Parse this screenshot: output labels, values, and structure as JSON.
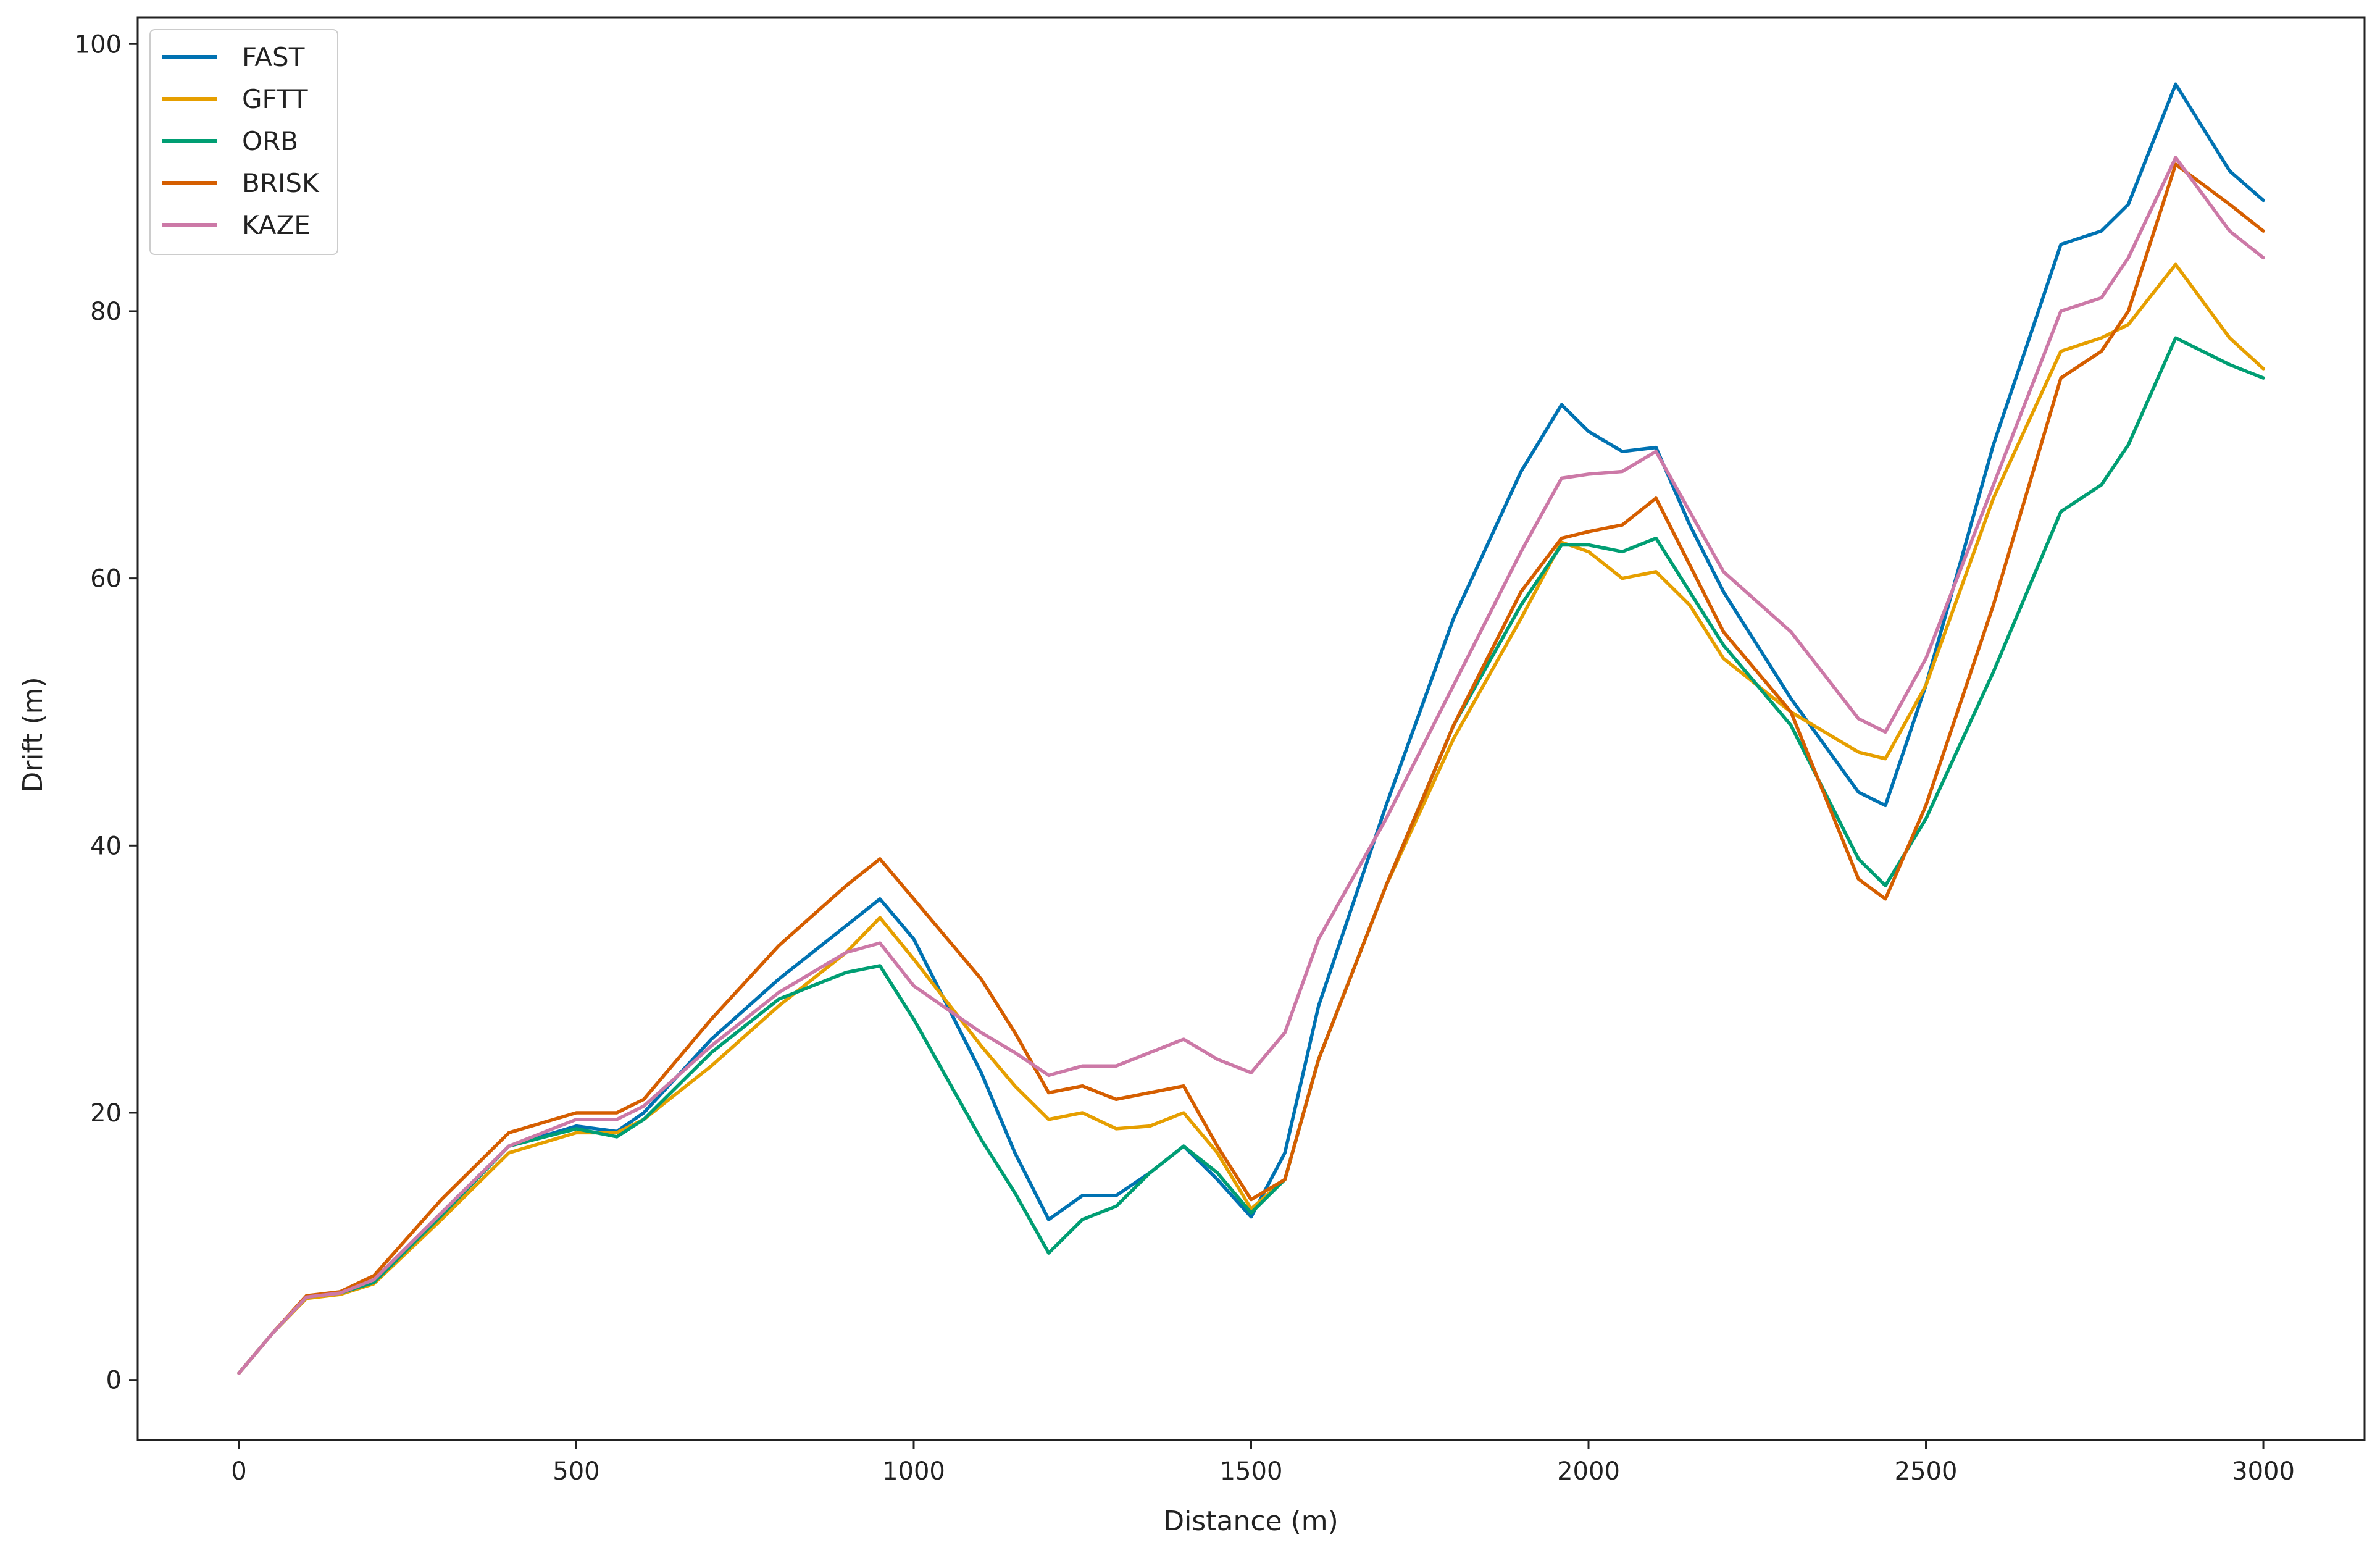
{
  "chart_data": {
    "type": "line",
    "xlabel": "Distance (m)",
    "ylabel": "Drift (m)",
    "xlim": [
      -150,
      3150
    ],
    "ylim": [
      -4.5,
      102
    ],
    "xticks": [
      0,
      500,
      1000,
      1500,
      2000,
      2500,
      3000
    ],
    "yticks": [
      0,
      20,
      40,
      60,
      80,
      100
    ],
    "grid": false,
    "legend_position": "upper-left",
    "x": [
      0,
      50,
      100,
      150,
      200,
      300,
      400,
      500,
      560,
      600,
      700,
      800,
      900,
      950,
      1000,
      1100,
      1150,
      1200,
      1250,
      1300,
      1350,
      1400,
      1450,
      1500,
      1550,
      1600,
      1700,
      1800,
      1900,
      1960,
      2000,
      2050,
      2100,
      2150,
      2200,
      2300,
      2400,
      2440,
      2500,
      2600,
      2700,
      2760,
      2800,
      2870,
      2950,
      3000
    ],
    "series": [
      {
        "name": "FAST",
        "color": "#0072B2",
        "values": [
          0.5,
          3.5,
          6.2,
          6.5,
          7.5,
          12.5,
          17.5,
          19.0,
          18.6,
          20.0,
          25.5,
          30.0,
          34.0,
          36.0,
          33.0,
          23.0,
          17.0,
          12.0,
          13.8,
          13.8,
          15.5,
          17.5,
          15.0,
          12.2,
          17.0,
          28.0,
          43.0,
          57.0,
          68.0,
          73.0,
          71.0,
          69.5,
          69.8,
          64.0,
          59.0,
          51.0,
          44.0,
          43.0,
          52.0,
          70.0,
          85.0,
          86.0,
          88.0,
          97.0,
          90.5,
          88.3
        ]
      },
      {
        "name": "GFTT",
        "color": "#E69F00",
        "values": [
          0.5,
          3.5,
          6.1,
          6.4,
          7.2,
          12.0,
          17.0,
          18.5,
          18.5,
          19.5,
          23.5,
          28.0,
          32.0,
          34.6,
          31.5,
          25.0,
          22.0,
          19.5,
          20.0,
          18.8,
          19.0,
          20.0,
          17.0,
          12.8,
          15.0,
          24.0,
          37.0,
          48.0,
          57.0,
          62.7,
          62.0,
          60.0,
          60.5,
          58.0,
          54.0,
          50.0,
          47.0,
          46.5,
          52.0,
          66.0,
          77.0,
          78.0,
          79.0,
          83.5,
          78.0,
          75.7
        ]
      },
      {
        "name": "ORB",
        "color": "#009E73",
        "values": [
          0.5,
          3.5,
          6.2,
          6.5,
          7.3,
          12.3,
          17.5,
          18.8,
          18.2,
          19.5,
          24.5,
          28.5,
          30.5,
          31.0,
          27.0,
          18.0,
          14.0,
          9.5,
          12.0,
          13.0,
          15.5,
          17.5,
          15.5,
          12.5,
          15.0,
          24.0,
          37.0,
          49.0,
          58.0,
          62.5,
          62.5,
          62.0,
          63.0,
          59.0,
          55.0,
          49.0,
          39.0,
          37.0,
          42.0,
          53.0,
          65.0,
          67.0,
          70.0,
          78.0,
          76.0,
          75.0
        ]
      },
      {
        "name": "BRISK",
        "color": "#D55E00",
        "values": [
          0.5,
          3.5,
          6.3,
          6.6,
          7.8,
          13.5,
          18.5,
          20.0,
          20.0,
          21.0,
          27.0,
          32.5,
          37.0,
          39.0,
          36.0,
          30.0,
          26.0,
          21.5,
          22.0,
          21.0,
          21.5,
          22.0,
          17.5,
          13.5,
          15.0,
          24.0,
          37.0,
          49.0,
          59.0,
          63.0,
          63.5,
          64.0,
          66.0,
          61.0,
          56.0,
          50.0,
          37.5,
          36.0,
          43.0,
          58.0,
          75.0,
          77.0,
          80.0,
          91.0,
          88.0,
          86.0
        ]
      },
      {
        "name": "KAZE",
        "color": "#CC79A7",
        "values": [
          0.5,
          3.5,
          6.2,
          6.5,
          7.5,
          12.5,
          17.5,
          19.5,
          19.5,
          20.5,
          25.0,
          29.0,
          32.0,
          32.7,
          29.5,
          26.0,
          24.5,
          22.8,
          23.5,
          23.5,
          24.5,
          25.5,
          24.0,
          23.0,
          26.0,
          33.0,
          42.0,
          52.0,
          62.0,
          67.5,
          67.8,
          68.0,
          69.5,
          65.0,
          60.5,
          56.0,
          49.5,
          48.5,
          54.0,
          67.0,
          80.0,
          81.0,
          84.0,
          91.5,
          86.0,
          84.0
        ]
      }
    ]
  }
}
